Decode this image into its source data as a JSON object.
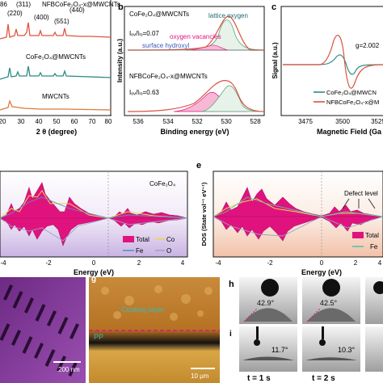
{
  "panel_a": {
    "peak_labels": [
      "86",
      "(311)",
      "(220)",
      "(400)",
      "(440)",
      "(551)"
    ],
    "series_labels": [
      "NFBCoFe₂O₄-x@MWCNTs",
      "CoFe₂O₄@MWCNTs",
      "MWCNTs"
    ],
    "xlabel": "2 θ (degree)",
    "xticks": [
      "20",
      "30",
      "40",
      "50",
      "60",
      "70",
      "80"
    ]
  },
  "panel_b": {
    "letter": "b",
    "ylabel": "Intensity (a.u.)",
    "top_title": "CoFe₂O₄@MWCNTs",
    "top_ratio": "Iₒᵥ/Iₗₒ=0.07",
    "lattice_label": "lattice oxygen",
    "vacancy_label": "oxygen vacancies",
    "hydroxyl_label": "surface hydroxyl",
    "bottom_title": "NFBCoFe₂O₄-x@MWCNTs",
    "bottom_ratio": "Iₒᵥ/Iₗₒ=0.63",
    "xlabel": "Binding energy (eV)",
    "xticks": [
      "536",
      "534",
      "532",
      "530",
      "528"
    ]
  },
  "panel_c": {
    "letter": "c",
    "ylabel": "Signal (a.u.)",
    "g_label": "g=2.002",
    "legend": [
      "CoFe₂O₄@MWCN",
      "NFBCoFe₂O₄-x@M"
    ],
    "xlabel": "Magnetic Field (Ga",
    "xticks": [
      "3475",
      "3500",
      "3525"
    ]
  },
  "panel_d": {
    "material": "CoFe₂O₄",
    "legend": [
      "Total",
      "Co",
      "Fe",
      "O"
    ],
    "xlabel": "Energy (eV)",
    "xticks": [
      "-4",
      "-2",
      "0",
      "2",
      "4"
    ]
  },
  "panel_e": {
    "letter": "e",
    "ylabel": "DOS (State vol⁻¹ eV⁻¹)",
    "defect_label": "Defect level",
    "legend": [
      "Total",
      "Fe"
    ],
    "xlabel": "Energy (eV)",
    "xticks": [
      "-4",
      "-2",
      "0",
      "2",
      "4"
    ]
  },
  "panel_f": {
    "scale": "200 nm"
  },
  "panel_g": {
    "letter": "g",
    "coating_label": "Coating layer",
    "pp_label": "PP",
    "scale": "10 μm"
  },
  "panel_h": {
    "letter": "h",
    "angles": [
      "42.9°",
      "42.5°"
    ]
  },
  "panel_i": {
    "letter": "i",
    "angles": [
      "11.7°",
      "10.3°"
    ],
    "times": [
      "t = 1 s",
      "t = 2 s"
    ]
  },
  "colors": {
    "red_curve": "#d9533f",
    "teal_curve": "#2e8b86",
    "magenta_fill": "#e0137e",
    "peach_bg": "#f3c9b2",
    "lavender_bg": "#d8c6ea"
  }
}
